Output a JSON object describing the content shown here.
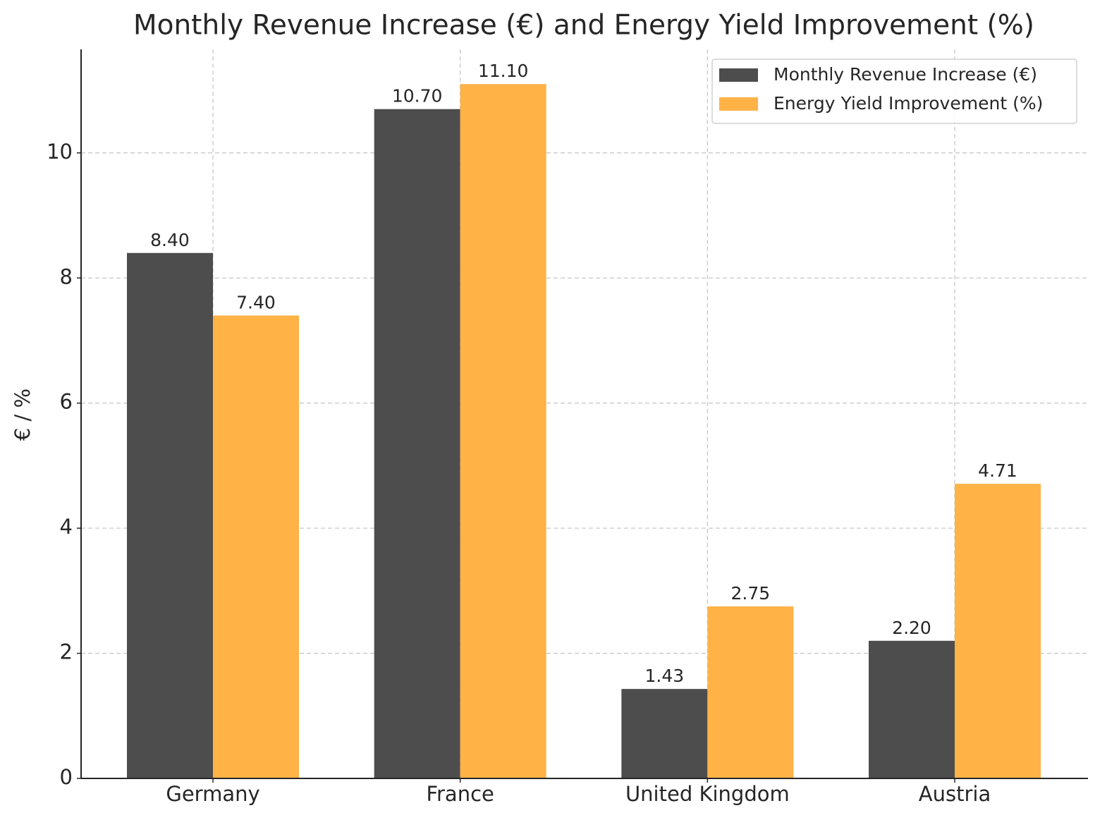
{
  "chart_data": {
    "type": "bar",
    "title": "Monthly Revenue Increase (€) and Energy Yield Improvement (%)",
    "y_label": "€ / %",
    "categories": [
      "Germany",
      "France",
      "United Kingdom",
      "Austria"
    ],
    "series": [
      {
        "name": "Monthly Revenue Increase (€)",
        "color": "#4d4d4d",
        "values": [
          8.4,
          10.7,
          1.43,
          2.2
        ],
        "value_labels": [
          "8.40",
          "10.70",
          "1.43",
          "2.20"
        ]
      },
      {
        "name": "Energy Yield Improvement (%)",
        "color": "#ffb246",
        "values": [
          7.4,
          11.1,
          2.75,
          4.71
        ],
        "value_labels": [
          "7.40",
          "11.10",
          "2.75",
          "4.71"
        ]
      }
    ],
    "ylim": [
      0,
      11.655
    ],
    "yticks": [
      0,
      2,
      4,
      6,
      8,
      10
    ],
    "grid": true,
    "legend": "upper right"
  }
}
